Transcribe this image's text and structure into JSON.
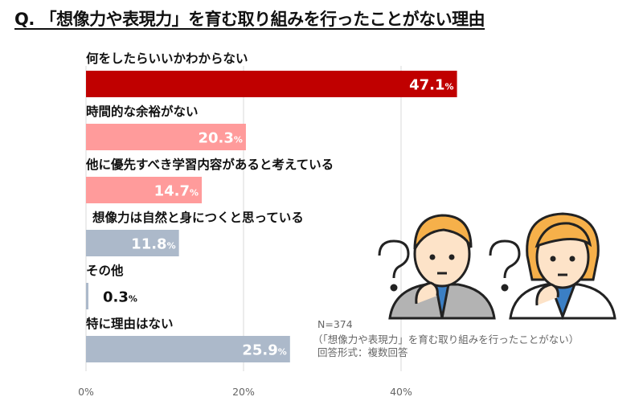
{
  "chart_data": {
    "type": "bar",
    "orientation": "horizontal",
    "title": "Q. 「想像力や表現力」を育む取り組みを行ったことがない理由",
    "categories": [
      "何をしたらいいかわからない",
      "時間的な余裕がない",
      "他に優先すべき学習内容があると考えている",
      "想像力は自然と身につくと思っている",
      "その他",
      "特に理由はない"
    ],
    "values": [
      47.1,
      20.3,
      14.7,
      11.8,
      0.3,
      25.9
    ],
    "unit": "%",
    "colors": [
      "#c00000",
      "#ff9b9b",
      "#ff9b9b",
      "#acb9ca",
      "#acb9ca",
      "#acb9ca"
    ],
    "xlim": [
      0,
      50
    ],
    "xticks": [
      "0%",
      "20%",
      "40%"
    ],
    "xtick_values": [
      0,
      20,
      40
    ],
    "grid": true
  },
  "notes": [
    "N=374",
    "（「想像力や表現力」を育む取り組みを行ったことがない）",
    "回答形式：複数回答"
  ],
  "illustration": "two-people-thinking-with-question-marks"
}
